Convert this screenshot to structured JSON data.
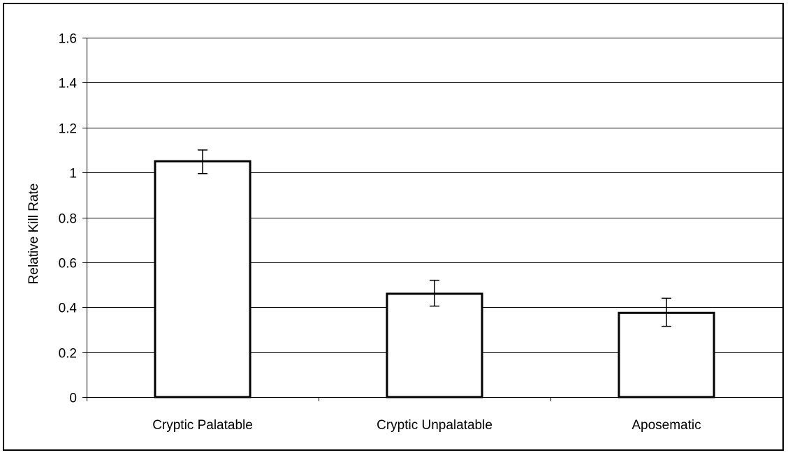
{
  "chart_data": {
    "type": "bar",
    "title": "",
    "xlabel": "",
    "ylabel": "Relative Kill Rate",
    "categories": [
      "Cryptic Palatable",
      "Cryptic Unpalatable",
      "Aposematic"
    ],
    "values": [
      1.05,
      0.46,
      0.375
    ],
    "error_low": [
      0.995,
      0.405,
      0.315
    ],
    "error_high": [
      1.1,
      0.52,
      0.44
    ],
    "ylim": [
      0,
      1.6
    ],
    "yticks": [
      0,
      0.2,
      0.4,
      0.6,
      0.8,
      1,
      1.2,
      1.4,
      1.6
    ],
    "ytick_labels": [
      "0",
      "0.2",
      "0.4",
      "0.6",
      "0.8",
      "1",
      "1.2",
      "1.4",
      "1.6"
    ],
    "grid": true,
    "legend": "none",
    "colors": {
      "bar_fill": "#ffffff",
      "bar_stroke": "#000000",
      "gridline": "#000000",
      "error_bar": "#000000"
    }
  }
}
